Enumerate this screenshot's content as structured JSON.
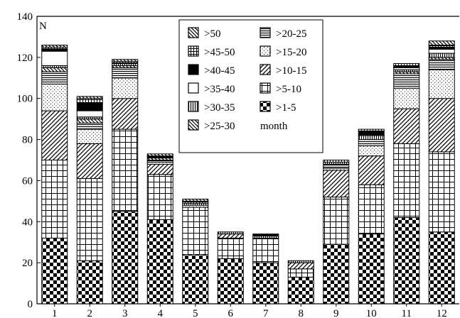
{
  "chart_data": {
    "type": "bar",
    "stacked": true,
    "ylabel": "N",
    "xlabel": "",
    "ylim": [
      0,
      140
    ],
    "yticks": [
      0,
      20,
      40,
      60,
      80,
      100,
      120,
      140
    ],
    "categories": [
      "1",
      "2",
      "3",
      "4",
      "5",
      "6",
      "7",
      "8",
      "9",
      "10",
      "11",
      "12"
    ],
    "grid": false,
    "legend": {
      "placement": "top-center",
      "title": "month"
    },
    "series": [
      {
        "name": ">1-5",
        "pattern": "checker",
        "values": [
          32,
          21,
          45,
          41,
          24,
          22,
          20,
          13,
          29,
          34,
          42,
          35
        ]
      },
      {
        "name": ">5-10",
        "pattern": "grid",
        "values": [
          38,
          40,
          40,
          22,
          23,
          10,
          12,
          4,
          23,
          24,
          36,
          39
        ]
      },
      {
        "name": ">10-15",
        "pattern": "diag-up",
        "values": [
          24,
          17,
          15,
          5,
          0,
          2,
          0,
          3,
          13,
          14,
          17,
          26
        ]
      },
      {
        "name": ">15-20",
        "pattern": "dots",
        "values": [
          13,
          7,
          10,
          1,
          1,
          0,
          0,
          0,
          1,
          5,
          10,
          14
        ]
      },
      {
        "name": ">20-25",
        "pattern": "hlines",
        "values": [
          6,
          3,
          5,
          1,
          0,
          0,
          0,
          0,
          2,
          3,
          7,
          5
        ]
      },
      {
        "name": ">25-30",
        "pattern": "diag-down",
        "values": [
          2,
          2,
          1,
          1,
          0,
          0,
          0,
          0,
          0,
          0,
          1,
          1
        ]
      },
      {
        "name": ">30-35",
        "pattern": "vlines",
        "values": [
          1,
          1,
          1,
          0,
          1,
          1,
          1,
          1,
          1,
          2,
          1,
          2
        ]
      },
      {
        "name": ">35-40",
        "pattern": "white",
        "values": [
          7,
          3,
          0,
          0,
          0,
          0,
          0,
          0,
          0,
          0,
          1,
          2
        ]
      },
      {
        "name": ">40-45",
        "pattern": "black",
        "values": [
          1,
          4,
          0,
          1,
          0,
          0,
          1,
          0,
          0,
          2,
          1,
          1
        ]
      },
      {
        "name": ">45-50",
        "pattern": "smallgrid",
        "values": [
          1,
          2,
          1,
          0,
          1,
          0,
          0,
          0,
          1,
          1,
          1,
          1
        ]
      },
      {
        "name": ">50",
        "pattern": "diag-down",
        "values": [
          1,
          1,
          1,
          1,
          1,
          0,
          0,
          0,
          0,
          0,
          0,
          2
        ]
      }
    ],
    "legend_order": [
      ">50",
      ">20-25",
      ">45-50",
      ">15-20",
      ">40-45",
      ">10-15",
      ">35-40",
      ">5-10",
      ">30-35",
      ">1-5",
      ">25-30"
    ]
  }
}
